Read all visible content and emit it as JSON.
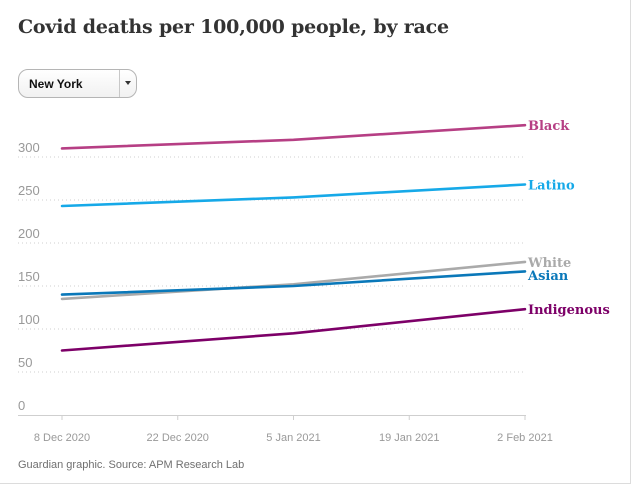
{
  "title": "Covid deaths per 100,000 people, by race",
  "region_select": {
    "selected": "New York"
  },
  "source": "Guardian graphic. Source: APM Research Lab",
  "chart_data": {
    "type": "line",
    "title": "Covid deaths per 100,000 people, by race",
    "xlabel": "",
    "ylabel": "",
    "x": [
      "2020-12-08",
      "2021-01-05",
      "2021-02-02"
    ],
    "x_ticks": [
      "8 Dec 2020",
      "22 Dec 2020",
      "5 Jan 2021",
      "19 Jan 2021",
      "2 Feb 2021"
    ],
    "y_ticks": [
      0,
      50,
      100,
      150,
      200,
      250,
      300
    ],
    "ylim": [
      0,
      300
    ],
    "grid": true,
    "legend": "end-of-line labels",
    "series": [
      {
        "name": "Black",
        "color": "#b63f84",
        "values": [
          310,
          320,
          337
        ]
      },
      {
        "name": "Latino",
        "color": "#16a9e8",
        "values": [
          243,
          253,
          268
        ]
      },
      {
        "name": "White",
        "color": "#aaaaaa",
        "values": [
          135,
          152,
          178
        ]
      },
      {
        "name": "Asian",
        "color": "#0a78b9",
        "values": [
          140,
          150,
          167
        ]
      },
      {
        "name": "Indigenous",
        "color": "#7d0068",
        "values": [
          75,
          95,
          123
        ]
      }
    ]
  }
}
